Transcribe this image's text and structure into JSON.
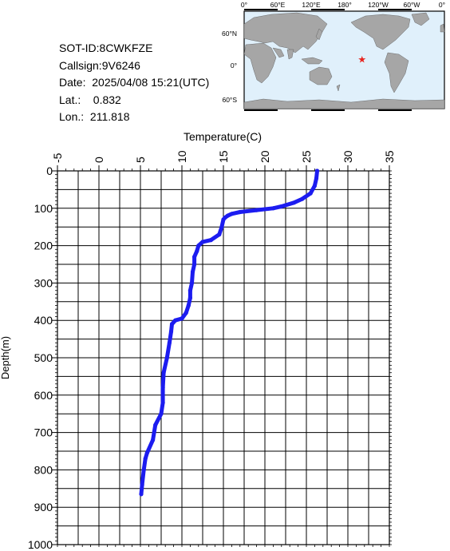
{
  "info": {
    "sot_id": "SOT-ID:8CWKFZE",
    "callsign": "Callsign:9V6246",
    "date": "Date:  2025/04/08 15:21(UTC)",
    "lat": "Lat.:    0.832",
    "lon": "Lon.:  211.818"
  },
  "map": {
    "top_labels": [
      "0°",
      "60°E",
      "120°E",
      "180°",
      "120°W",
      "60°W",
      "0°"
    ],
    "side_labels": [
      "60°N",
      "0°",
      "60°S"
    ],
    "marker_symbol": "★",
    "marker_color": "#e8231e",
    "ocean_color": "#e0f0fb",
    "land_color": "#a6a6a6",
    "marker_lon": 211.818,
    "marker_lat": 0.832
  },
  "chart_data": {
    "type": "line",
    "xlabel": "Temperature(C)",
    "ylabel": "Depth(m)",
    "xlim": [
      -5,
      35
    ],
    "ylim": [
      0,
      1000
    ],
    "x_ticks": [
      "-5",
      "0",
      "5",
      "10",
      "15",
      "20",
      "25",
      "30",
      "35"
    ],
    "y_ticks": [
      "0",
      "100",
      "200",
      "300",
      "400",
      "500",
      "600",
      "700",
      "800",
      "900",
      "1000"
    ],
    "y_inverted": true,
    "grid": true,
    "line_color": "#1c1cf0",
    "series": [
      {
        "name": "",
        "depth": [
          0,
          20,
          40,
          60,
          75,
          85,
          95,
          100,
          105,
          110,
          115,
          120,
          125,
          130,
          150,
          170,
          185,
          190,
          200,
          215,
          230,
          250,
          270,
          300,
          320,
          340,
          360,
          380,
          395,
          400,
          410,
          430,
          460,
          500,
          540,
          580,
          620,
          650,
          680,
          720,
          755,
          770,
          800,
          840,
          865
        ],
        "temperature": [
          26.3,
          26.2,
          26.0,
          25.5,
          24.5,
          23.5,
          22.0,
          21.0,
          19.0,
          17.0,
          16.0,
          15.5,
          15.2,
          15.0,
          14.8,
          14.5,
          13.5,
          12.5,
          12.0,
          11.8,
          11.5,
          11.5,
          11.3,
          11.2,
          11.0,
          11.0,
          10.8,
          10.5,
          10.0,
          9.2,
          8.8,
          8.7,
          8.5,
          8.2,
          7.8,
          7.7,
          7.7,
          7.5,
          6.8,
          6.5,
          5.8,
          5.6,
          5.4,
          5.2,
          5.1
        ]
      }
    ]
  }
}
